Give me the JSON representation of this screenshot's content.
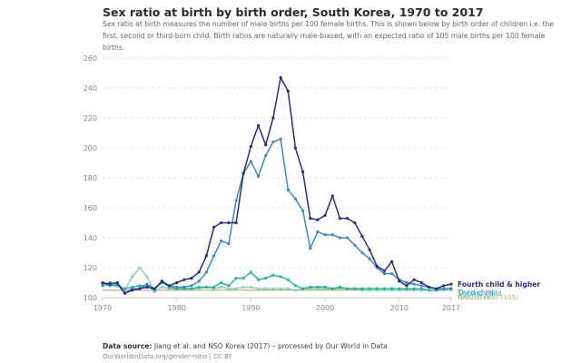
{
  "header": {
    "title": "Sex ratio at birth by birth order, South Korea, 1970 to 2017",
    "subtitle": "Sex ratio at birth measures the number of male births per 100 female births. This is shown below by birth order of children i.e. the first, second or third-born child. Birth ratios are naturally male-biased, with an expected ratio of 105 male births per 100 female births."
  },
  "footer": {
    "source_label": "Data source:",
    "source_text": "Jiang et al. and NSO Korea (2017) – processed by Our World in Data",
    "license": "OurWorldInData.org/gender-ratio | CC BY"
  },
  "chart_data": {
    "type": "line",
    "title": "Sex ratio at birth by birth order, South Korea, 1970 to 2017",
    "xlim": [
      1970,
      2017
    ],
    "ylim": [
      100,
      260
    ],
    "x_ticks": [
      "1970",
      "1980",
      "1990",
      "2000",
      "2010",
      "2017"
    ],
    "y_ticks": [
      "100",
      "120",
      "140",
      "160",
      "180",
      "200",
      "220",
      "240",
      "260"
    ],
    "grid": "horizontal dashed",
    "legend": "labels at right end of lines",
    "x": [
      1970,
      1971,
      1972,
      1973,
      1974,
      1975,
      1976,
      1977,
      1978,
      1979,
      1980,
      1981,
      1982,
      1983,
      1984,
      1985,
      1986,
      1987,
      1988,
      1989,
      1990,
      1991,
      1992,
      1993,
      1994,
      1995,
      1996,
      1997,
      1998,
      1999,
      2000,
      2001,
      2002,
      2003,
      2004,
      2005,
      2006,
      2007,
      2008,
      2009,
      2010,
      2011,
      2012,
      2013,
      2014,
      2015,
      2016,
      2017
    ],
    "series": [
      {
        "name": "Fourth child & higher",
        "color": "#2a2f7d",
        "values": [
          110,
          109,
          110,
          103,
          105,
          106,
          107,
          106,
          111,
          108,
          110,
          112,
          113,
          117,
          128,
          147,
          150,
          150,
          150,
          183,
          201,
          215,
          202,
          220,
          247,
          238,
          200,
          184,
          153,
          152,
          155,
          168,
          153,
          153,
          150,
          141,
          132,
          121,
          118,
          124,
          111,
          108,
          112,
          110,
          107,
          106,
          108,
          109
        ]
      },
      {
        "name": "Third child",
        "color": "#3a8bbf",
        "values": [
          108,
          110,
          109,
          103,
          106,
          106,
          109,
          106,
          110,
          108,
          107,
          107,
          108,
          111,
          117,
          128,
          138,
          136,
          165,
          183,
          191,
          181,
          195,
          204,
          206,
          172,
          166,
          158,
          133,
          144,
          142,
          142,
          140,
          140,
          135,
          130,
          126,
          120,
          116,
          116,
          112,
          110,
          109,
          108,
          107,
          106,
          106,
          106
        ]
      },
      {
        "name": "Second child",
        "color": "#2bb3a3",
        "values": [
          109,
          108,
          108,
          106,
          107,
          108,
          108,
          105,
          111,
          107,
          106,
          106,
          106,
          107,
          107,
          107,
          110,
          108,
          113,
          113,
          117,
          112,
          113,
          115,
          114,
          112,
          108,
          106,
          107,
          107,
          107,
          106,
          107,
          106,
          106,
          106,
          106,
          106,
          106,
          106,
          106,
          106,
          106,
          106,
          105,
          105,
          106,
          106
        ]
      },
      {
        "name": "First child",
        "color": "#8fd1b0",
        "values": [
          109,
          108,
          109,
          105,
          114,
          120,
          114,
          104,
          107,
          106,
          106,
          106,
          106,
          106,
          107,
          106,
          107,
          106,
          106,
          107,
          107,
          106,
          106,
          106,
          106,
          106,
          105,
          106,
          106,
          106,
          106,
          106,
          106,
          106,
          106,
          105,
          105,
          105,
          105,
          105,
          105,
          105,
          105,
          105,
          105,
          105,
          105,
          105
        ]
      },
      {
        "name": "Natural ratio (105)",
        "color": "#b5a87a",
        "values": [
          105,
          105,
          105,
          105,
          105,
          105,
          105,
          105,
          105,
          105,
          105,
          105,
          105,
          105,
          105,
          105,
          105,
          105,
          105,
          105,
          105,
          105,
          105,
          105,
          105,
          105,
          105,
          105,
          105,
          105,
          105,
          105,
          105,
          105,
          105,
          105,
          105,
          105,
          105,
          105,
          105,
          105,
          105,
          105,
          105,
          105,
          105,
          105
        ]
      }
    ]
  }
}
